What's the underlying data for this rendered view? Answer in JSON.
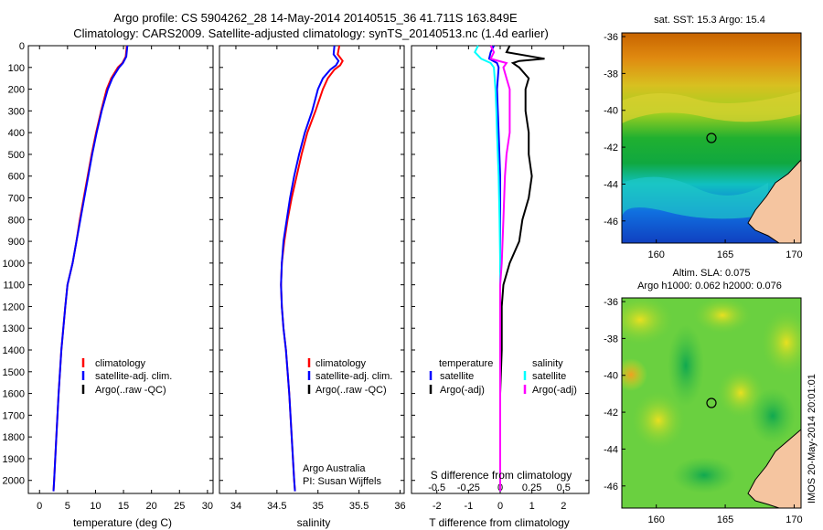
{
  "header": {
    "line1": "Argo profile: CS 5904262_28 14-May-2014 20140515_36 41.711S 163.849E",
    "line2": "Climatology: CARS2009. Satellite-adjusted climatology: synTS_20140513.nc (1.4d earlier)"
  },
  "watermark": "IMOS 20-May-2014 20:01:01",
  "colors": {
    "climatology": "#ff0000",
    "satellite": "#0000ff",
    "argo": "#000000",
    "sal_satellite": "#00ffff",
    "sal_argo": "#ff00ff",
    "land": "#f5c5a0"
  },
  "chart_data": [
    {
      "type": "line",
      "xlabel": "temperature (deg C)",
      "ylabel": "",
      "xlim": [
        -2,
        31
      ],
      "ylim": [
        2060,
        0
      ],
      "xticks": [
        0,
        5,
        10,
        15,
        20,
        25,
        30
      ],
      "yticks": [
        0,
        100,
        200,
        300,
        400,
        500,
        600,
        700,
        800,
        900,
        1000,
        1100,
        1200,
        1300,
        1400,
        1500,
        1600,
        1700,
        1800,
        1900,
        2000
      ],
      "legend": [
        "climatology",
        "satellite-adj. clim.",
        "Argo(..raw -QC)"
      ],
      "legend_position": "lower-right",
      "series": [
        {
          "name": "climatology",
          "color": "#ff0000",
          "depth": [
            0,
            50,
            80,
            100,
            150,
            200,
            300,
            400,
            500,
            600,
            700,
            800,
            900,
            1000,
            1100,
            1200,
            1400,
            1600,
            1800,
            2000,
            2050
          ],
          "values": [
            15.6,
            15.4,
            14.8,
            14.0,
            12.8,
            12.0,
            11.0,
            10.1,
            9.3,
            8.6,
            7.9,
            7.2,
            6.6,
            5.9,
            5.0,
            4.6,
            3.9,
            3.4,
            3.0,
            2.6,
            2.5
          ]
        },
        {
          "name": "satellite-adj. clim.",
          "color": "#0000ff",
          "depth": [
            0,
            50,
            80,
            100,
            150,
            200,
            300,
            400,
            500,
            600,
            700,
            800,
            900,
            1000,
            1100,
            1200,
            1400,
            1600,
            1800,
            2000,
            2050
          ],
          "values": [
            15.7,
            15.5,
            14.9,
            14.2,
            13.0,
            12.2,
            11.1,
            10.2,
            9.4,
            8.7,
            8.0,
            7.3,
            6.6,
            5.9,
            5.0,
            4.6,
            3.9,
            3.4,
            3.0,
            2.6,
            2.5
          ]
        }
      ]
    },
    {
      "type": "line",
      "xlabel": "salinity",
      "ylabel": "",
      "xlim": [
        33.8,
        36.05
      ],
      "ylim": [
        2060,
        0
      ],
      "xticks": [
        34,
        34.5,
        35,
        35.5,
        36
      ],
      "legend": [
        "climatology",
        "satellite-adj. clim.",
        "Argo(..raw -QC)"
      ],
      "legend_position": "lower-right",
      "annotation": [
        "Argo Australia",
        "PI: Susan Wijffels"
      ],
      "series": [
        {
          "name": "climatology",
          "color": "#ff0000",
          "depth": [
            0,
            40,
            70,
            90,
            110,
            150,
            200,
            300,
            400,
            500,
            600,
            700,
            800,
            900,
            1000,
            1100,
            1200,
            1300,
            1400,
            1600,
            1800,
            2000,
            2050
          ],
          "values": [
            35.26,
            35.24,
            35.3,
            35.27,
            35.2,
            35.12,
            35.06,
            34.97,
            34.87,
            34.8,
            34.74,
            34.68,
            34.63,
            34.59,
            34.56,
            34.55,
            34.56,
            34.58,
            34.61,
            34.65,
            34.68,
            34.71,
            34.72
          ]
        },
        {
          "name": "satellite-adj. clim.",
          "color": "#0000ff",
          "depth": [
            0,
            40,
            70,
            90,
            110,
            150,
            200,
            300,
            400,
            500,
            600,
            700,
            800,
            900,
            1000,
            1100,
            1200,
            1300,
            1400,
            1600,
            1800,
            2000,
            2050
          ],
          "values": [
            35.2,
            35.19,
            35.25,
            35.22,
            35.15,
            35.06,
            35.0,
            34.93,
            34.84,
            34.77,
            34.71,
            34.66,
            34.62,
            34.58,
            34.56,
            34.55,
            34.56,
            34.58,
            34.61,
            34.65,
            34.68,
            34.71,
            34.72
          ]
        }
      ]
    },
    {
      "type": "line",
      "xlabel": "T difference from climatology",
      "xlabel2": "S difference from climatology",
      "xlim": [
        -2.8,
        2.8
      ],
      "ylim": [
        2060,
        0
      ],
      "xticks": [
        -2,
        -1,
        0,
        1,
        2
      ],
      "xticks_s": [
        "-0.5",
        "-0.25",
        "0",
        "0.25",
        "0.5"
      ],
      "legend_temperature": {
        "title": "temperature",
        "entries": [
          "satellite",
          "Argo(-adj)"
        ]
      },
      "legend_salinity": {
        "title": "salinity",
        "entries": [
          "satellite",
          "Argo(-adj)"
        ]
      },
      "series": [
        {
          "name": "T satellite",
          "color": "#0000ff",
          "depth": [
            0,
            30,
            60,
            80,
            100,
            200,
            400,
            600,
            800,
            1000,
            1200,
            2050
          ],
          "values": [
            -0.2,
            -0.3,
            -0.35,
            -0.1,
            -0.05,
            -0.1,
            -0.05,
            0,
            0,
            0,
            0,
            0
          ]
        },
        {
          "name": "T Argo(-adj)",
          "color": "#000000",
          "depth": [
            0,
            30,
            60,
            70,
            80,
            90,
            100,
            150,
            200,
            300,
            400,
            500,
            600,
            700,
            800,
            900,
            1000,
            1100,
            1200,
            1300,
            1400,
            1600,
            1800,
            2000,
            2050
          ],
          "values": [
            0.3,
            0.2,
            1.4,
            0.6,
            0.4,
            0.5,
            0.6,
            0.9,
            0.8,
            0.8,
            0.9,
            0.9,
            1.0,
            0.9,
            0.7,
            0.6,
            0.3,
            0.1,
            0.05,
            0.05,
            0.05,
            0.0,
            0.0,
            0.0,
            0.0
          ]
        },
        {
          "name": "S satellite",
          "color": "#00ffff",
          "depth": [
            0,
            30,
            60,
            80,
            100,
            200,
            300,
            400,
            600,
            800,
            1000,
            2050
          ],
          "values": [
            -0.7,
            -0.8,
            -0.6,
            -0.3,
            -0.2,
            -0.15,
            -0.12,
            -0.1,
            -0.05,
            -0.02,
            0,
            0
          ]
        },
        {
          "name": "S Argo(-adj)",
          "color": "#ff00ff",
          "depth": [
            0,
            30,
            60,
            80,
            100,
            150,
            200,
            300,
            400,
            500,
            600,
            800,
            1000,
            1100,
            2050
          ],
          "values": [
            -0.3,
            -0.2,
            -0.3,
            0.2,
            0.1,
            0.2,
            0.3,
            0.3,
            0.3,
            0.2,
            0.15,
            0.1,
            0.05,
            0.0,
            0.0
          ]
        }
      ]
    },
    {
      "type": "heatmap",
      "title": "sat. SST: 15.3 Argo: 15.4",
      "xlim": [
        157.5,
        170.5
      ],
      "ylim": [
        -47.2,
        -35.8
      ],
      "xticks": [
        160,
        165,
        170
      ],
      "yticks": [
        -36,
        -38,
        -40,
        -42,
        -44,
        -46
      ],
      "argo_position": [
        163.849,
        -41.711
      ]
    },
    {
      "type": "heatmap",
      "title": "Altim. SLA: 0.075",
      "subtitle": "Argo h1000: 0.062 h2000: 0.076",
      "xlim": [
        157.5,
        170.5
      ],
      "ylim": [
        -47.2,
        -35.8
      ],
      "xticks": [
        160,
        165,
        170
      ],
      "yticks": [
        -36,
        -38,
        -40,
        -42,
        -44,
        -46
      ],
      "argo_position": [
        163.849,
        -41.711
      ]
    }
  ]
}
